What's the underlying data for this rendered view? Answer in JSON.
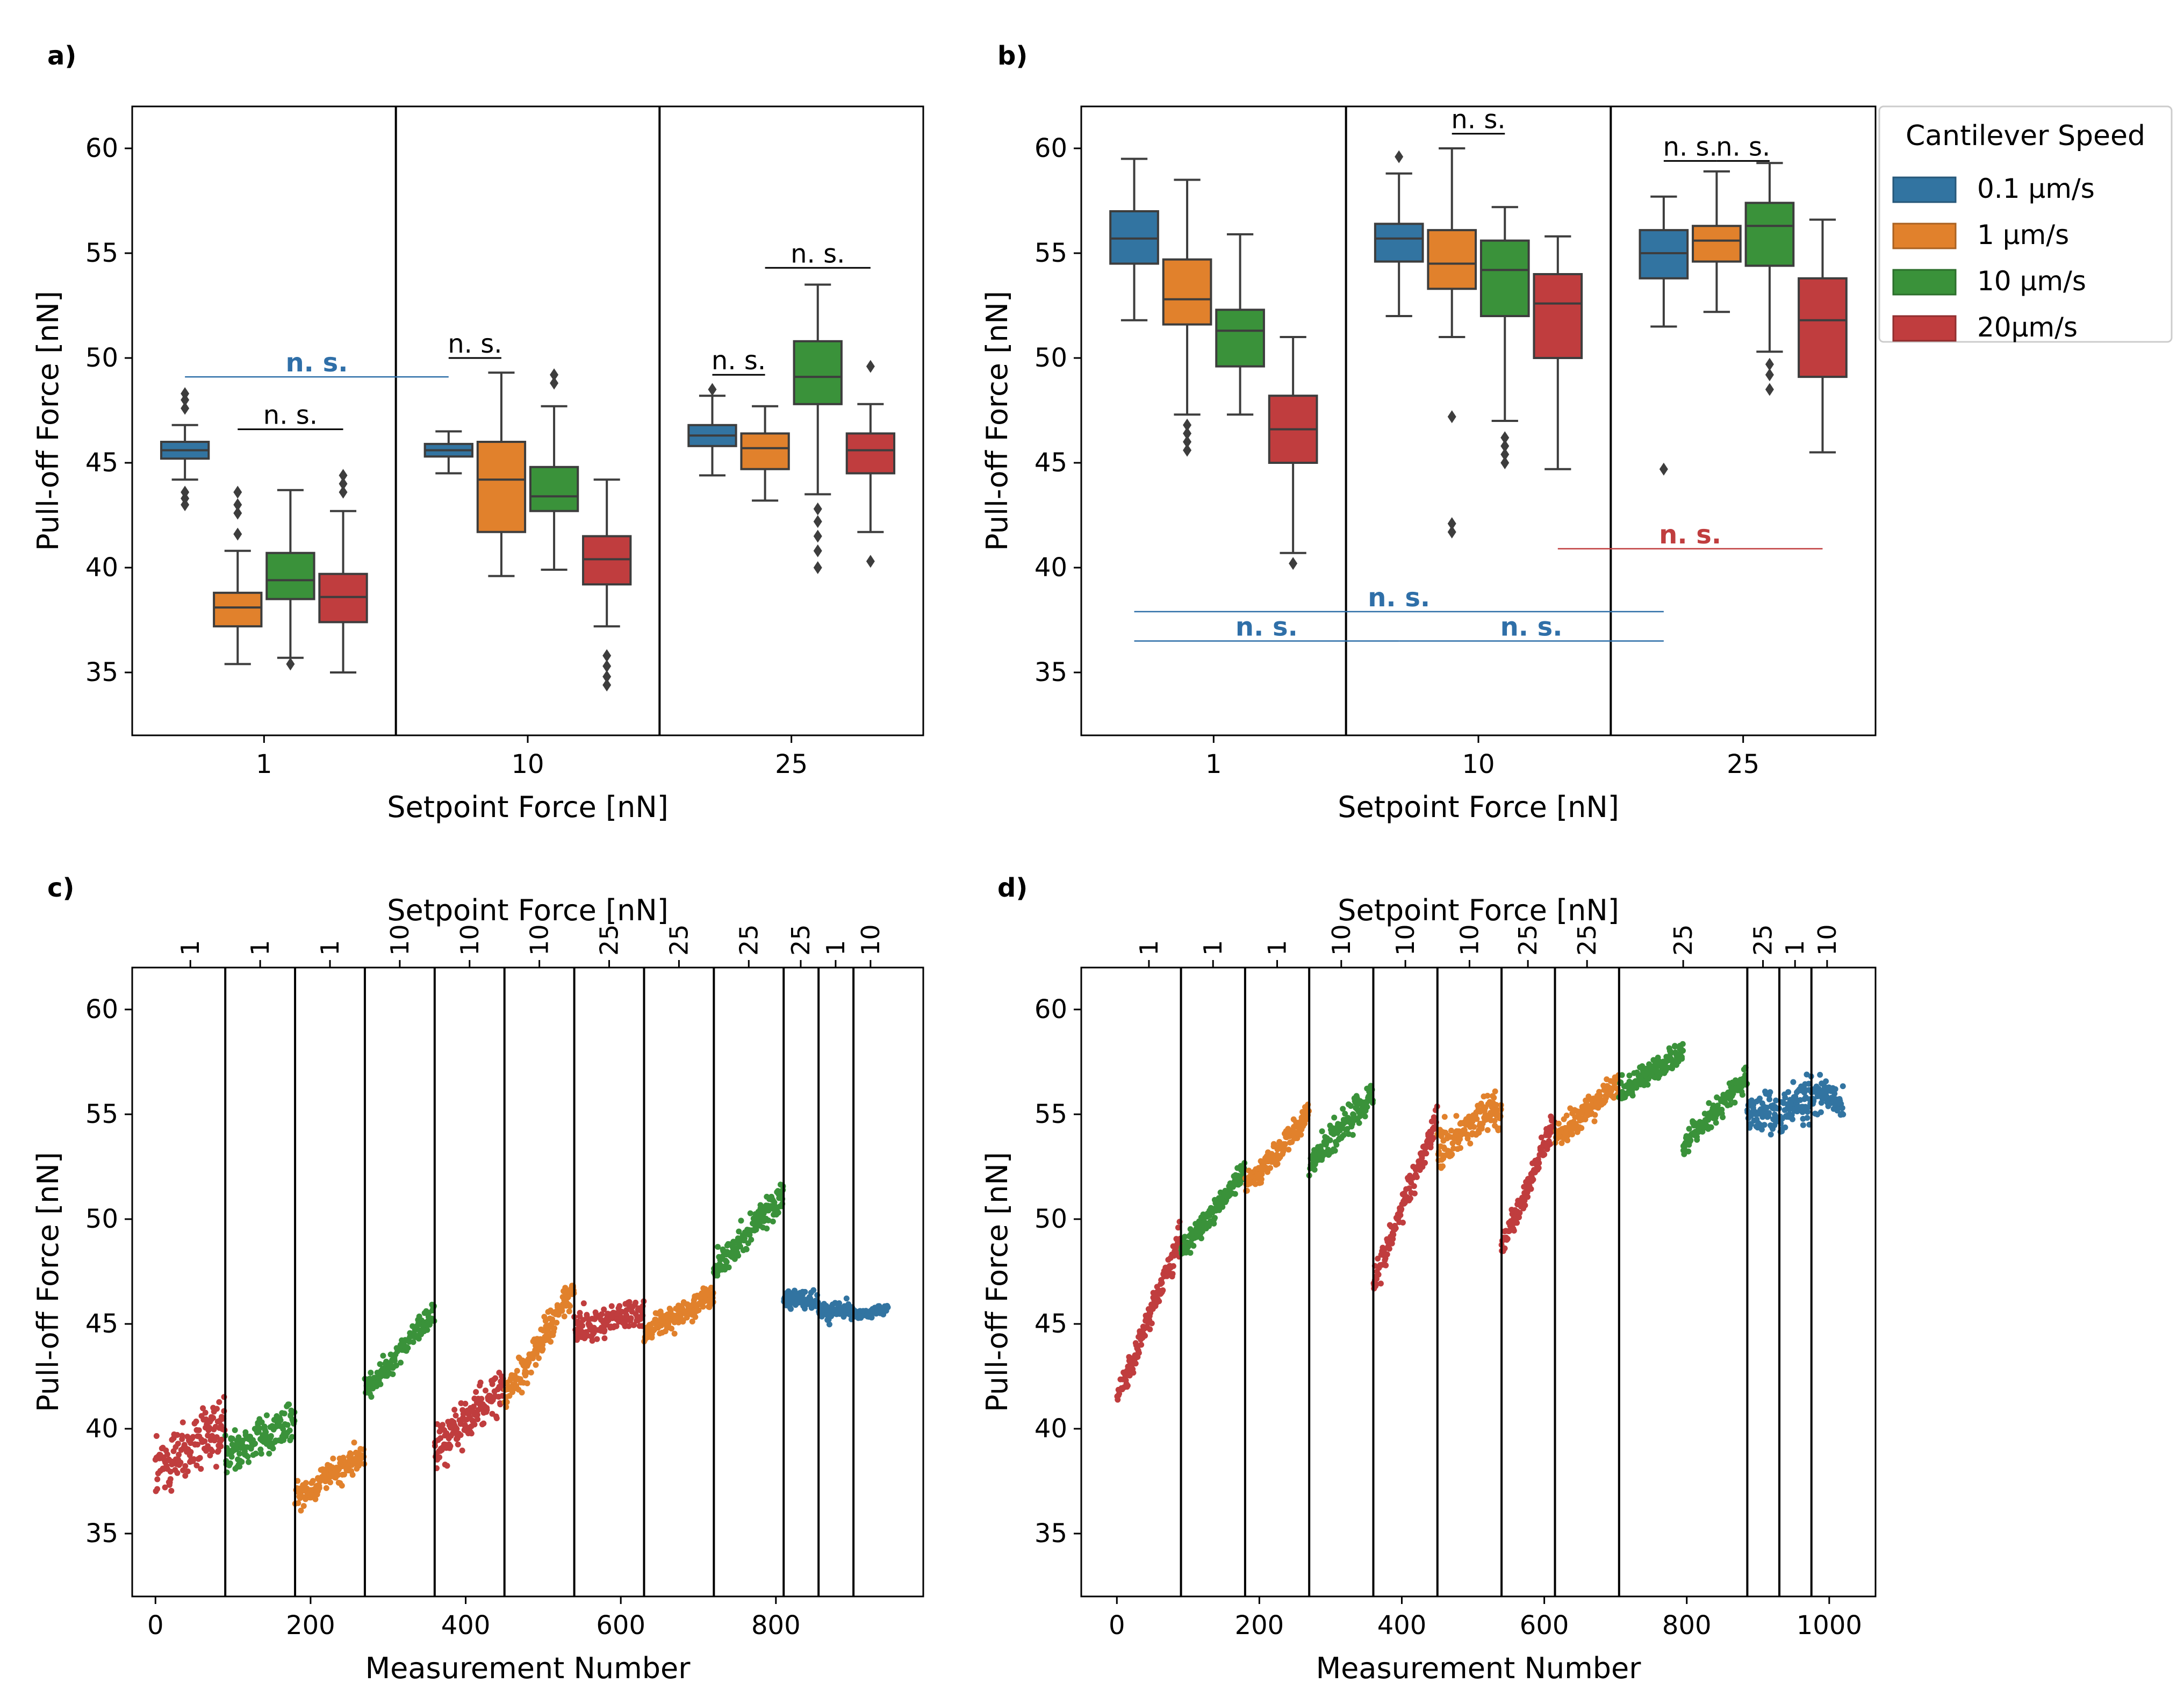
{
  "figure": {
    "legend_title": "Cantilever Speed",
    "speeds": [
      {
        "name": "0.1 μm/s",
        "color": "#3274a1"
      },
      {
        "name": "1 μm/s",
        "color": "#e1812c"
      },
      {
        "name": "10 μm/s",
        "color": "#3a923a"
      },
      {
        "name": "20μm/s",
        "color": "#c03d3e"
      }
    ],
    "colors": {
      "blue": "#3274a1",
      "orange": "#e1812c",
      "green": "#3a923a",
      "red": "#c03d3e",
      "ns_blue": "#2f6fa8",
      "ns_red": "#c03d3e"
    }
  },
  "chart_data": [
    {
      "id": "a",
      "panel_label": "a)",
      "type": "box",
      "xlabel": "Setpoint Force [nN]",
      "ylabel": "Pull-off Force [nN]",
      "ylim": [
        32,
        62
      ],
      "yticks": [
        35,
        40,
        45,
        50,
        55,
        60
      ],
      "categories": [
        "1",
        "10",
        "25"
      ],
      "boxes": [
        {
          "group": 0,
          "speed": 0,
          "q1": 45.2,
          "med": 45.6,
          "q3": 46.0,
          "wl": 44.2,
          "wh": 46.8,
          "fliers": [
            43.0,
            43.3,
            43.6,
            47.6,
            48.0,
            48.3
          ]
        },
        {
          "group": 0,
          "speed": 1,
          "q1": 37.2,
          "med": 38.1,
          "q3": 38.8,
          "wl": 35.4,
          "wh": 40.8,
          "fliers": [
            41.6,
            42.6,
            43.0,
            43.6
          ]
        },
        {
          "group": 0,
          "speed": 2,
          "q1": 38.5,
          "med": 39.4,
          "q3": 40.7,
          "wl": 35.7,
          "wh": 43.7,
          "fliers": [
            35.4
          ]
        },
        {
          "group": 0,
          "speed": 3,
          "q1": 37.4,
          "med": 38.6,
          "q3": 39.7,
          "wl": 35.0,
          "wh": 42.7,
          "fliers": [
            43.6,
            44.0,
            44.4
          ]
        },
        {
          "group": 1,
          "speed": 0,
          "q1": 45.3,
          "med": 45.6,
          "q3": 45.9,
          "wl": 44.5,
          "wh": 46.5,
          "fliers": []
        },
        {
          "group": 1,
          "speed": 1,
          "q1": 41.7,
          "med": 44.2,
          "q3": 46.0,
          "wl": 39.6,
          "wh": 49.3,
          "fliers": []
        },
        {
          "group": 1,
          "speed": 2,
          "q1": 42.7,
          "med": 43.4,
          "q3": 44.8,
          "wl": 39.9,
          "wh": 47.7,
          "fliers": [
            48.8,
            49.2
          ]
        },
        {
          "group": 1,
          "speed": 3,
          "q1": 39.2,
          "med": 40.4,
          "q3": 41.5,
          "wl": 37.2,
          "wh": 44.2,
          "fliers": [
            34.4,
            34.8,
            35.3,
            35.8
          ]
        },
        {
          "group": 2,
          "speed": 0,
          "q1": 45.8,
          "med": 46.3,
          "q3": 46.8,
          "wl": 44.4,
          "wh": 48.2,
          "fliers": [
            48.5
          ]
        },
        {
          "group": 2,
          "speed": 1,
          "q1": 44.7,
          "med": 45.7,
          "q3": 46.4,
          "wl": 43.2,
          "wh": 47.7,
          "fliers": []
        },
        {
          "group": 2,
          "speed": 2,
          "q1": 47.8,
          "med": 49.1,
          "q3": 50.8,
          "wl": 43.5,
          "wh": 53.5,
          "fliers": [
            40.0,
            40.8,
            41.5,
            42.2,
            42.8
          ]
        },
        {
          "group": 2,
          "speed": 3,
          "q1": 44.5,
          "med": 45.6,
          "q3": 46.4,
          "wl": 41.7,
          "wh": 47.8,
          "fliers": [
            40.3,
            49.6
          ]
        }
      ],
      "annotations": [
        {
          "text": "n. s.",
          "color": "black",
          "x1": [
            0,
            1
          ],
          "x2": [
            0,
            3
          ],
          "y": 46.6
        },
        {
          "text": "n. s.",
          "color": "black",
          "x1": [
            1,
            0
          ],
          "x2": [
            1,
            1
          ],
          "y": 50.0
        },
        {
          "text": "n. s.",
          "color": "black",
          "x1": [
            2,
            0
          ],
          "x2": [
            2,
            1
          ],
          "y": 49.2
        },
        {
          "text": "n. s.",
          "color": "black",
          "x1": [
            2,
            1
          ],
          "x2": [
            2,
            3
          ],
          "y": 54.3
        },
        {
          "text": "n. s.",
          "color": "blue",
          "x1": [
            0,
            0
          ],
          "x2": [
            1,
            0
          ],
          "y": 49.1
        }
      ]
    },
    {
      "id": "b",
      "panel_label": "b)",
      "type": "box",
      "xlabel": "Setpoint Force [nN]",
      "ylabel": "Pull-off Force [nN]",
      "ylim": [
        32,
        62
      ],
      "yticks": [
        35,
        40,
        45,
        50,
        55,
        60
      ],
      "categories": [
        "1",
        "10",
        "25"
      ],
      "boxes": [
        {
          "group": 0,
          "speed": 0,
          "q1": 54.5,
          "med": 55.7,
          "q3": 57.0,
          "wl": 51.8,
          "wh": 59.5,
          "fliers": []
        },
        {
          "group": 0,
          "speed": 1,
          "q1": 51.6,
          "med": 52.8,
          "q3": 54.7,
          "wl": 47.3,
          "wh": 58.5,
          "fliers": [
            45.6,
            46.0,
            46.4,
            46.8
          ]
        },
        {
          "group": 0,
          "speed": 2,
          "q1": 49.6,
          "med": 51.3,
          "q3": 52.3,
          "wl": 47.3,
          "wh": 55.9,
          "fliers": []
        },
        {
          "group": 0,
          "speed": 3,
          "q1": 45.0,
          "med": 46.6,
          "q3": 48.2,
          "wl": 40.7,
          "wh": 51.0,
          "fliers": [
            40.2
          ]
        },
        {
          "group": 1,
          "speed": 0,
          "q1": 54.6,
          "med": 55.7,
          "q3": 56.4,
          "wl": 52.0,
          "wh": 58.8,
          "fliers": [
            59.6
          ]
        },
        {
          "group": 1,
          "speed": 1,
          "q1": 53.3,
          "med": 54.5,
          "q3": 56.1,
          "wl": 51.0,
          "wh": 60.0,
          "fliers": [
            41.7,
            42.1,
            47.2
          ]
        },
        {
          "group": 1,
          "speed": 2,
          "q1": 52.0,
          "med": 54.2,
          "q3": 55.6,
          "wl": 47.0,
          "wh": 57.2,
          "fliers": [
            45.0,
            45.4,
            45.8,
            46.2
          ]
        },
        {
          "group": 1,
          "speed": 3,
          "q1": 50.0,
          "med": 52.6,
          "q3": 54.0,
          "wl": 44.7,
          "wh": 55.8,
          "fliers": []
        },
        {
          "group": 2,
          "speed": 0,
          "q1": 53.8,
          "med": 55.0,
          "q3": 56.1,
          "wl": 51.5,
          "wh": 57.7,
          "fliers": [
            44.7
          ]
        },
        {
          "group": 2,
          "speed": 1,
          "q1": 54.6,
          "med": 55.6,
          "q3": 56.3,
          "wl": 52.2,
          "wh": 58.9,
          "fliers": []
        },
        {
          "group": 2,
          "speed": 2,
          "q1": 54.4,
          "med": 56.3,
          "q3": 57.4,
          "wl": 50.3,
          "wh": 59.3,
          "fliers": [
            48.5,
            49.2,
            49.7
          ]
        },
        {
          "group": 2,
          "speed": 3,
          "q1": 49.1,
          "med": 51.8,
          "q3": 53.8,
          "wl": 45.5,
          "wh": 56.6,
          "fliers": []
        }
      ],
      "annotations": [
        {
          "text": "n. s.",
          "color": "black",
          "x1": [
            1,
            1
          ],
          "x2": [
            1,
            2
          ],
          "y": 60.7
        },
        {
          "text": "n. s.",
          "color": "black",
          "x1": [
            2,
            0
          ],
          "x2": [
            2,
            1
          ],
          "y": 59.4
        },
        {
          "text": "n. s.",
          "color": "black",
          "x1": [
            2,
            1
          ],
          "x2": [
            2,
            2
          ],
          "y": 59.4
        },
        {
          "text": "n. s.",
          "color": "red",
          "x1": [
            1,
            3
          ],
          "x2": [
            2,
            3
          ],
          "y": 40.9
        },
        {
          "text": "n. s.",
          "color": "blue",
          "x1": [
            0,
            0
          ],
          "x2": [
            2,
            0
          ],
          "y": 37.9
        },
        {
          "text": "n. s.",
          "color": "blue",
          "x1": [
            0,
            0
          ],
          "x2": [
            1,
            0
          ],
          "y": 36.5
        },
        {
          "text": "n. s.",
          "color": "blue",
          "x1": [
            1,
            0
          ],
          "x2": [
            2,
            0
          ],
          "y": 36.5
        }
      ]
    },
    {
      "id": "c",
      "panel_label": "c)",
      "type": "scatter",
      "xlabel": "Measurement Number",
      "ylabel": "Pull-off Force [nN]",
      "top_label": "Setpoint Force [nN]",
      "xlim": [
        -30,
        990
      ],
      "xticks": [
        0,
        200,
        400,
        600,
        800
      ],
      "ylim": [
        32,
        62
      ],
      "yticks": [
        35,
        40,
        45,
        50,
        55,
        60
      ],
      "boundaries": [
        90,
        180,
        270,
        360,
        450,
        540,
        630,
        720,
        810,
        855,
        900
      ],
      "top_ticks": [
        {
          "x": 45,
          "label": "1"
        },
        {
          "x": 135,
          "label": "1"
        },
        {
          "x": 225,
          "label": "1"
        },
        {
          "x": 315,
          "label": "10"
        },
        {
          "x": 405,
          "label": "10"
        },
        {
          "x": 495,
          "label": "10"
        },
        {
          "x": 585,
          "label": "25"
        },
        {
          "x": 675,
          "label": "25"
        },
        {
          "x": 765,
          "label": "25"
        },
        {
          "x": 832,
          "label": "25"
        },
        {
          "x": 877,
          "label": "1"
        },
        {
          "x": 922,
          "label": "10"
        }
      ],
      "segments": [
        {
          "start": 0,
          "end": 90,
          "speed": 3,
          "y0": 38.0,
          "y1": 40.0,
          "spread": 2.6
        },
        {
          "start": 90,
          "end": 180,
          "speed": 2,
          "y0": 38.8,
          "y1": 40.4,
          "spread": 1.7
        },
        {
          "start": 180,
          "end": 270,
          "speed": 1,
          "y0": 36.7,
          "y1": 38.8,
          "spread": 1.3
        },
        {
          "start": 270,
          "end": 360,
          "speed": 2,
          "y0": 41.8,
          "y1": 45.6,
          "spread": 1.2
        },
        {
          "start": 360,
          "end": 450,
          "speed": 3,
          "y0": 39.0,
          "y1": 42.0,
          "spread": 1.9
        },
        {
          "start": 450,
          "end": 540,
          "speed": 1,
          "y0": 41.5,
          "y1": 46.6,
          "spread": 1.4
        },
        {
          "start": 540,
          "end": 630,
          "speed": 3,
          "y0": 44.8,
          "y1": 45.6,
          "spread": 1.3
        },
        {
          "start": 630,
          "end": 720,
          "speed": 1,
          "y0": 44.6,
          "y1": 46.3,
          "spread": 1.0
        },
        {
          "start": 720,
          "end": 810,
          "speed": 2,
          "y0": 47.6,
          "y1": 51.2,
          "spread": 1.3
        },
        {
          "start": 810,
          "end": 855,
          "speed": 0,
          "y0": 46.2,
          "y1": 46.0,
          "spread": 0.8
        },
        {
          "start": 855,
          "end": 900,
          "speed": 0,
          "y0": 45.6,
          "y1": 45.6,
          "spread": 0.8
        },
        {
          "start": 900,
          "end": 945,
          "speed": 0,
          "y0": 45.4,
          "y1": 45.7,
          "spread": 0.4
        }
      ]
    },
    {
      "id": "d",
      "panel_label": "d)",
      "type": "scatter",
      "xlabel": "Measurement Number",
      "ylabel": "Pull-off Force [nN]",
      "top_label": "Setpoint Force [nN]",
      "xlim": [
        -50,
        1065
      ],
      "xticks": [
        0,
        200,
        400,
        600,
        800,
        1000
      ],
      "ylim": [
        32,
        62
      ],
      "yticks": [
        35,
        40,
        45,
        50,
        55,
        60
      ],
      "boundaries": [
        90,
        180,
        270,
        360,
        450,
        540,
        615,
        705,
        885,
        930,
        975
      ],
      "top_ticks": [
        {
          "x": 45,
          "label": "1"
        },
        {
          "x": 135,
          "label": "1"
        },
        {
          "x": 225,
          "label": "1"
        },
        {
          "x": 315,
          "label": "10"
        },
        {
          "x": 405,
          "label": "10"
        },
        {
          "x": 495,
          "label": "10"
        },
        {
          "x": 577,
          "label": "25"
        },
        {
          "x": 660,
          "label": "25"
        },
        {
          "x": 795,
          "label": "25"
        },
        {
          "x": 907,
          "label": "25"
        },
        {
          "x": 952,
          "label": "1"
        },
        {
          "x": 997,
          "label": "10"
        }
      ],
      "segments": [
        {
          "start": 0,
          "end": 90,
          "speed": 3,
          "y0": 41.5,
          "y1": 49.0,
          "spread": 1.2
        },
        {
          "start": 90,
          "end": 180,
          "speed": 2,
          "y0": 48.4,
          "y1": 52.3,
          "spread": 1.0
        },
        {
          "start": 180,
          "end": 270,
          "speed": 1,
          "y0": 51.5,
          "y1": 55.0,
          "spread": 1.1
        },
        {
          "start": 270,
          "end": 360,
          "speed": 2,
          "y0": 52.5,
          "y1": 56.0,
          "spread": 1.2
        },
        {
          "start": 360,
          "end": 450,
          "speed": 3,
          "y0": 47.0,
          "y1": 54.8,
          "spread": 1.2
        },
        {
          "start": 450,
          "end": 540,
          "speed": 1,
          "y0": 53.2,
          "y1": 55.5,
          "spread": 1.8
        },
        {
          "start": 540,
          "end": 615,
          "speed": 3,
          "y0": 48.6,
          "y1": 54.6,
          "spread": 1.1
        },
        {
          "start": 615,
          "end": 705,
          "speed": 1,
          "y0": 53.8,
          "y1": 56.5,
          "spread": 1.1
        },
        {
          "start": 705,
          "end": 795,
          "speed": 2,
          "y0": 56.0,
          "y1": 58.0,
          "spread": 1.0
        },
        {
          "start": 795,
          "end": 885,
          "speed": 2,
          "y0": 53.5,
          "y1": 56.8,
          "spread": 1.0
        },
        {
          "start": 885,
          "end": 930,
          "speed": 0,
          "y0": 55.0,
          "y1": 55.0,
          "spread": 1.6
        },
        {
          "start": 930,
          "end": 975,
          "speed": 0,
          "y0": 55.0,
          "y1": 56.0,
          "spread": 1.8
        },
        {
          "start": 975,
          "end": 1020,
          "speed": 0,
          "y0": 56.0,
          "y1": 55.5,
          "spread": 1.5
        }
      ]
    }
  ]
}
